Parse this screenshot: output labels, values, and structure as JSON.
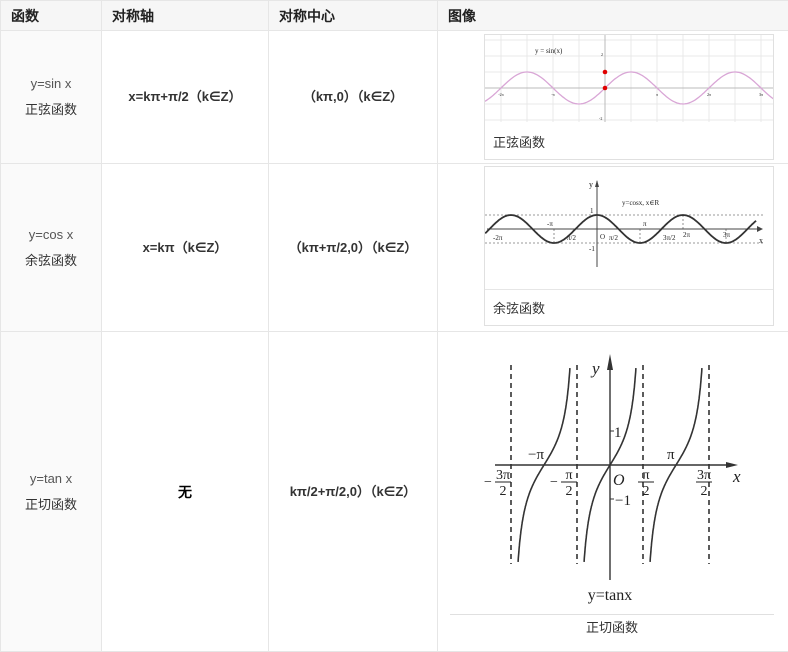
{
  "header": [
    "函数",
    "对称轴",
    "对称中心",
    "图像"
  ],
  "rows": [
    {
      "func": "y=sin x",
      "name": "正弦函数",
      "axis": "x=kπ+π/2（k∈Z）",
      "center": "（kπ,0）（k∈Z）",
      "caption": "正弦函数",
      "graph": {
        "title": "y = sin(x)",
        "xticks": [
          "-2π",
          "-π",
          "π",
          "2π",
          "3π"
        ],
        "yticks": [
          "2",
          "-2"
        ],
        "curve_color": "#d9a6d6",
        "point_color": "#e00000"
      }
    },
    {
      "func": "y=cos x",
      "name": "余弦函数",
      "axis": "x=kπ（k∈Z）",
      "center": "（kπ+π/2,0）（k∈Z）",
      "caption": "余弦函数",
      "graph": {
        "title": "y=cosx, x∈R",
        "y": "y",
        "x": "x",
        "o": "O",
        "one": "1",
        "neg_one": "-1",
        "labels": [
          "-2π",
          "-π",
          "π/2",
          "π/2",
          "π",
          "3π/2",
          "2π",
          "3π"
        ]
      }
    },
    {
      "func": "y=tan x",
      "name": "正切函数",
      "axis": "无",
      "center": "kπ/2+π/2,0）（k∈Z）",
      "caption": "正切函数",
      "graph": {
        "y": "y",
        "x": "x",
        "o": "O",
        "one": "1",
        "neg_one": "−1",
        "neg_pi": "−π",
        "pi": "π",
        "formula": "y=tanx",
        "fractions": [
          {
            "sign": "−",
            "num": "3π",
            "den": "2"
          },
          {
            "sign": "−",
            "num": "π",
            "den": "2"
          },
          {
            "sign": "",
            "num": "π",
            "den": "2"
          },
          {
            "sign": "",
            "num": "3π",
            "den": "2"
          }
        ]
      }
    }
  ]
}
